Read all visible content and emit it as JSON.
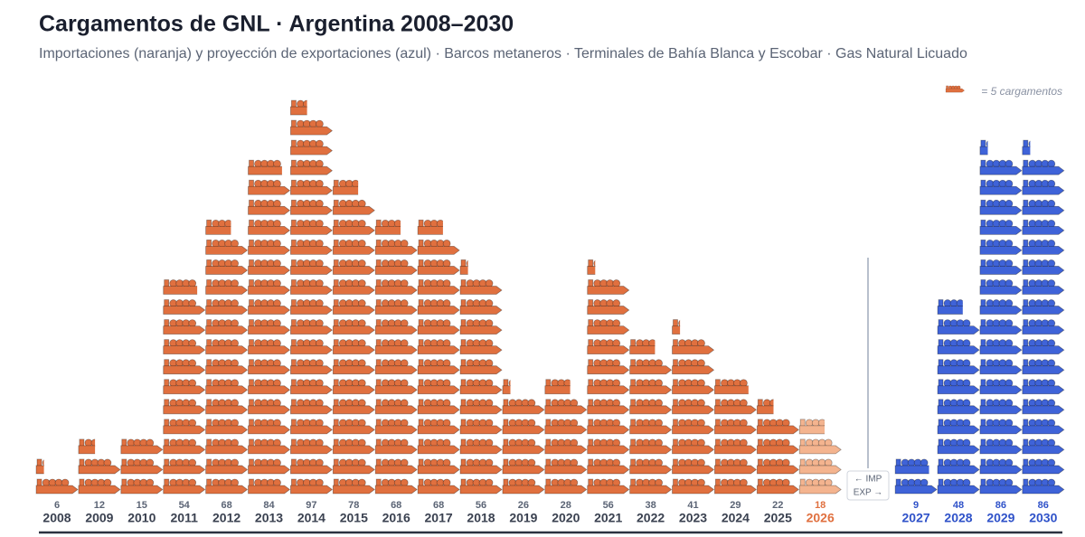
{
  "chart_data": {
    "type": "pictogram",
    "title": "Cargamentos de GNL  ·  Argentina 2008–2030",
    "subtitle": "Importaciones (naranja) y proyección de exportaciones (azul) · Barcos metaneros · Terminales de Bahía Blanca y Escobar · Gas Natural Licuado",
    "unit": 5,
    "unit_label": "= 5 cargamentos",
    "divider_labels": [
      "← IMP",
      "EXP →"
    ],
    "categories": [
      "2008",
      "2009",
      "2010",
      "2011",
      "2012",
      "2013",
      "2014",
      "2015",
      "2016",
      "2017",
      "2018",
      "2019",
      "2020",
      "2021",
      "2022",
      "2023",
      "2024",
      "2025",
      "2026",
      "2027",
      "2028",
      "2029",
      "2030"
    ],
    "series": [
      {
        "color": "#e0703f",
        "values": [
          6,
          12,
          15,
          54,
          68,
          84,
          97,
          78,
          68,
          68,
          56,
          26,
          28,
          56,
          38,
          41,
          29,
          22,
          null,
          null,
          null,
          null,
          null
        ]
      },
      {
        "color": "#f4b48f",
        "values": [
          null,
          null,
          null,
          null,
          null,
          null,
          null,
          null,
          null,
          null,
          null,
          null,
          null,
          null,
          null,
          null,
          null,
          null,
          18,
          null,
          null,
          null,
          null
        ]
      },
      {
        "color": "#3f63d8",
        "values": [
          null,
          null,
          null,
          null,
          null,
          null,
          null,
          null,
          null,
          null,
          null,
          null,
          null,
          null,
          null,
          null,
          null,
          null,
          null,
          9,
          48,
          86,
          86
        ]
      }
    ]
  }
}
